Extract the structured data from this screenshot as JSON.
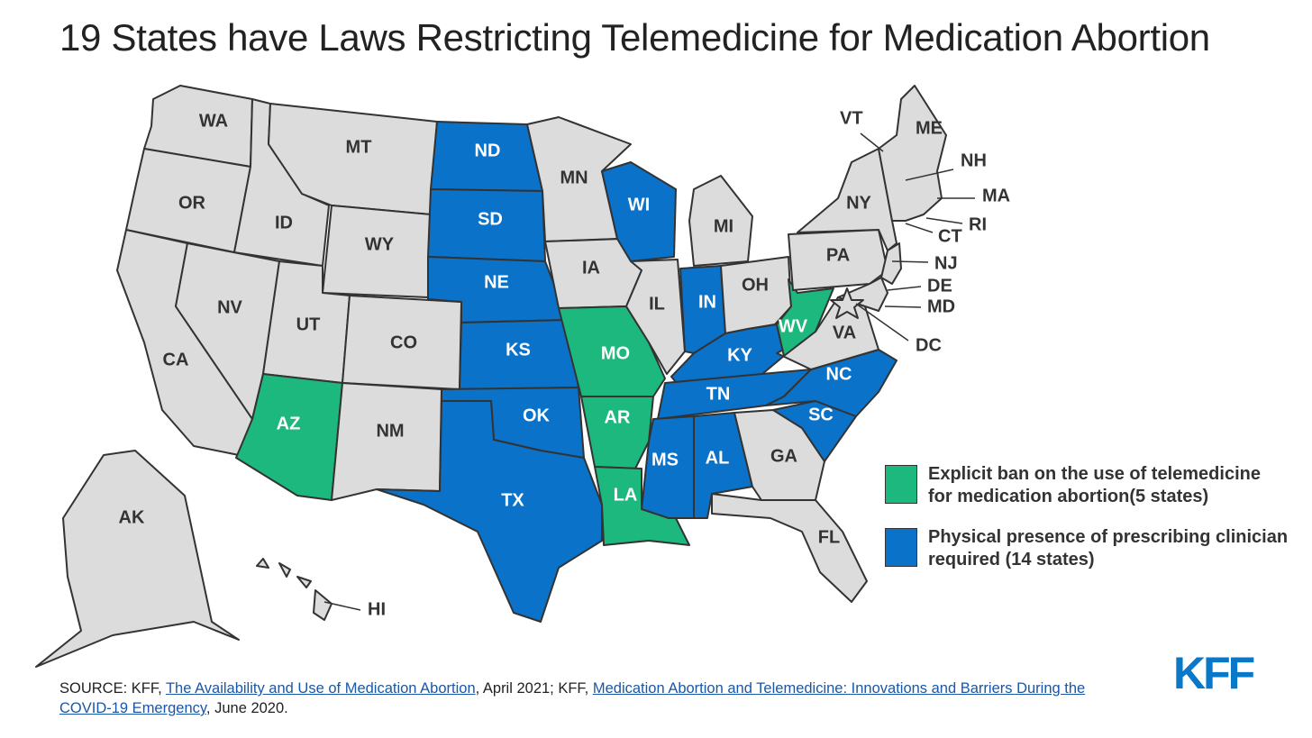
{
  "title": "19 States have Laws Restricting Telemedicine for Medication Abortion",
  "colors": {
    "explicit_ban": "#1db87d",
    "physical_presence": "#0a72c9",
    "none": "#dcdcdc",
    "border": "#333333"
  },
  "legend": [
    {
      "key": "explicit_ban",
      "label": "Explicit ban on the use of telemedicine for medication abortion(5 states)"
    },
    {
      "key": "physical_presence",
      "label": "Physical presence of prescribing clinician required (14 states)"
    }
  ],
  "states": {
    "WA": "none",
    "OR": "none",
    "CA": "none",
    "NV": "none",
    "ID": "none",
    "MT": "none",
    "WY": "none",
    "UT": "none",
    "CO": "none",
    "AZ": "explicit_ban",
    "NM": "none",
    "ND": "physical_presence",
    "SD": "physical_presence",
    "NE": "physical_presence",
    "KS": "physical_presence",
    "OK": "physical_presence",
    "TX": "physical_presence",
    "MN": "none",
    "IA": "none",
    "MO": "explicit_ban",
    "AR": "explicit_ban",
    "LA": "explicit_ban",
    "WI": "physical_presence",
    "IL": "none",
    "MI": "none",
    "IN": "physical_presence",
    "OH": "none",
    "KY": "physical_presence",
    "TN": "physical_presence",
    "MS": "physical_presence",
    "AL": "physical_presence",
    "GA": "none",
    "FL": "none",
    "SC": "physical_presence",
    "NC": "physical_presence",
    "VA": "none",
    "WV": "explicit_ban",
    "PA": "none",
    "NY": "none",
    "ME": "none",
    "AK": "none",
    "HI": "none",
    "NE_states": "none"
  },
  "small_state_labels": [
    "VT",
    "ME",
    "NH",
    "MA",
    "RI",
    "CT",
    "NJ",
    "DE",
    "MD",
    "DC",
    "HI"
  ],
  "source": {
    "prefix": "SOURCE: KFF, ",
    "link1": "The Availability and Use of Medication Abortion",
    "mid": ", April 2021; KFF, ",
    "link2": "Medication Abortion and Telemedicine: Innovations and Barriers During the COVID-19 Emergency",
    "suffix": ", June 2020."
  },
  "logo": "KFF"
}
